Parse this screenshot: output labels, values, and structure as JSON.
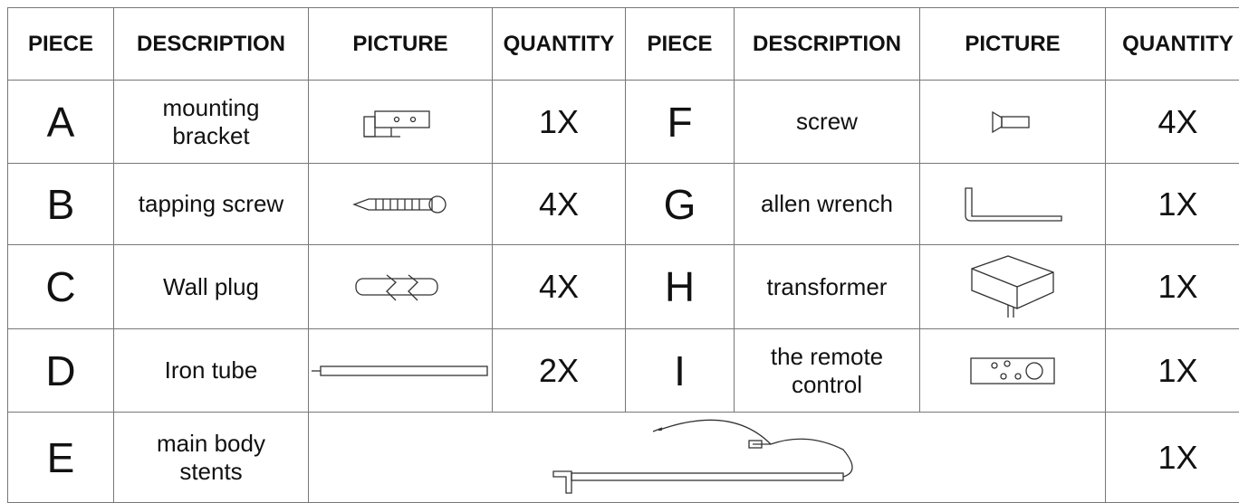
{
  "table": {
    "header": [
      "PIECE",
      "DESCRIPTION",
      "PICTURE",
      "QUANTITY",
      "PIECE",
      "DESCRIPTION",
      "PICTURE",
      "QUANTITY"
    ],
    "rows": [
      {
        "left": {
          "piece": "A",
          "description": [
            "mounting",
            "bracket"
          ],
          "quantity": "1X"
        },
        "right": {
          "piece": "F",
          "description": [
            "screw"
          ],
          "quantity": "4X"
        }
      },
      {
        "left": {
          "piece": "B",
          "description": [
            "tapping screw"
          ],
          "quantity": "4X"
        },
        "right": {
          "piece": "G",
          "description": [
            "allen wrench"
          ],
          "quantity": "1X"
        }
      },
      {
        "left": {
          "piece": "C",
          "description": [
            "Wall plug"
          ],
          "quantity": "4X"
        },
        "right": {
          "piece": "H",
          "description": [
            "transformer"
          ],
          "quantity": "1X"
        }
      },
      {
        "left": {
          "piece": "D",
          "description": [
            "Iron tube"
          ],
          "quantity": "2X"
        },
        "right": {
          "piece": "I",
          "description": [
            "the remote",
            "control"
          ],
          "quantity": "1X"
        }
      },
      {
        "left": {
          "piece": "E",
          "description": [
            "main body",
            "stents"
          ],
          "quantity": "1X"
        }
      }
    ]
  }
}
